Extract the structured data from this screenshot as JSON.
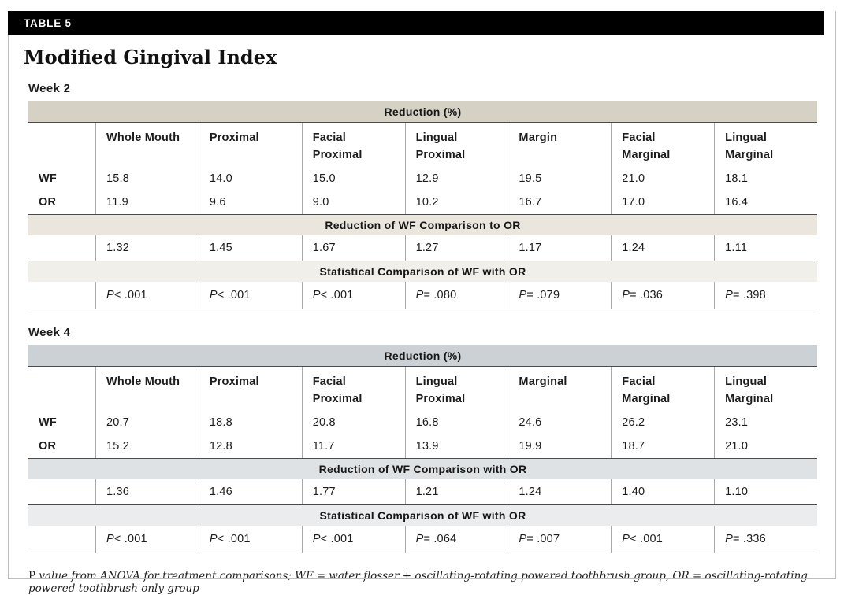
{
  "page": {
    "table_tag": "TABLE 5",
    "title": "Modified Gingival Index",
    "footnote_lead": "P",
    "footnote_text": " value from ANOVA for treatment comparisons; WF = water flosser + oscillating-rotating powered toothbrush group, OR = oscillating-rotating powered toothbrush only group"
  },
  "colors": {
    "header_bar_bg": "#000000",
    "header_bar_text": "#ffffff",
    "week2_reduction_band": "#d6d1c5",
    "week2_ratio_band": "#eae6dd",
    "week2_stat_band": "#f1efe9",
    "week4_reduction_band": "#ccd1d5",
    "week4_ratio_band": "#dfe2e5",
    "week4_stat_band": "#eaecee",
    "cell_divider": "#a9a9a9",
    "group_divider": "#4b4b4b",
    "page_rule": "#bdbdbd"
  },
  "sections": [
    {
      "week_label": "Week 2",
      "reduction_header": "Reduction (%)",
      "columns": [
        "Whole Mouth",
        "Proximal",
        "Facial\nProximal",
        "Lingual\nProximal",
        "Margin",
        "Facial\nMarginal",
        "Lingual\nMarginal"
      ],
      "rows": [
        {
          "label": "WF",
          "values": [
            "15.8",
            "14.0",
            "15.0",
            "12.9",
            "19.5",
            "21.0",
            "18.1"
          ]
        },
        {
          "label": "OR",
          "values": [
            "11.9",
            "9.6",
            "9.0",
            "10.2",
            "16.7",
            "17.0",
            "16.4"
          ]
        }
      ],
      "ratio_header": "Reduction of WF Comparison to OR",
      "ratio_values": [
        "1.32",
        "1.45",
        "1.67",
        "1.27",
        "1.17",
        "1.24",
        "1.11"
      ],
      "stat_header": "Statistical Comparison of WF with OR",
      "stat_values": [
        "P < .001",
        "P < .001",
        "P < .001",
        "P = .080",
        "P = .079",
        "P = .036",
        "P = .398"
      ]
    },
    {
      "week_label": "Week 4",
      "reduction_header": "Reduction (%)",
      "columns": [
        "Whole Mouth",
        "Proximal",
        "Facial\nProximal",
        "Lingual\nProximal",
        "Marginal",
        "Facial\nMarginal",
        "Lingual\nMarginal"
      ],
      "rows": [
        {
          "label": "WF",
          "values": [
            "20.7",
            "18.8",
            "20.8",
            "16.8",
            "24.6",
            "26.2",
            "23.1"
          ]
        },
        {
          "label": "OR",
          "values": [
            "15.2",
            "12.8",
            "11.7",
            "13.9",
            "19.9",
            "18.7",
            "21.0"
          ]
        }
      ],
      "ratio_header": "Reduction of WF Comparison with OR",
      "ratio_values": [
        "1.36",
        "1.46",
        "1.77",
        "1.21",
        "1.24",
        "1.40",
        "1.10"
      ],
      "stat_header": "Statistical Comparison of WF with OR",
      "stat_values": [
        "P < .001",
        "P < .001",
        "P < .001",
        "P = .064",
        "P = .007",
        "P < .001",
        "P = .336"
      ]
    }
  ]
}
